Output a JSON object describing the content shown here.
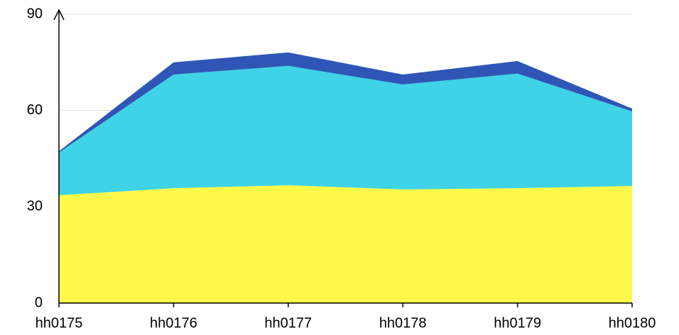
{
  "chart_data": {
    "type": "stacked_area",
    "categories": [
      "hh0175",
      "hh0176",
      "hh0177",
      "hh0178",
      "hh0179",
      "hh0180"
    ],
    "series": [
      {
        "color": "#fdf94b",
        "values": [
          33.6,
          35.8,
          36.7,
          35.4,
          35.8,
          36.5
        ]
      },
      {
        "color": "#3ed3e6",
        "values": [
          13.3,
          35.4,
          37.2,
          32.7,
          35.7,
          23.2
        ]
      },
      {
        "color": "#2f56b6",
        "values": [
          0.4,
          3.8,
          4.2,
          3.1,
          3.9,
          0.9
        ]
      }
    ],
    "ylim": [
      0,
      90
    ],
    "yticks": [
      0,
      30,
      60,
      90
    ],
    "grid": true
  }
}
